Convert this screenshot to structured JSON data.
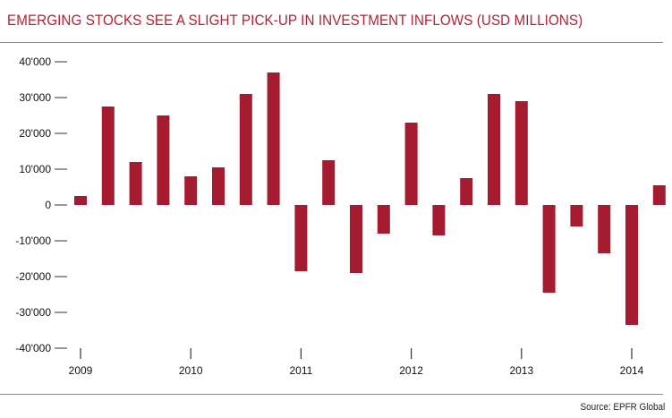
{
  "chart_data": {
    "type": "bar",
    "title": "EMERGING STOCKS SEE A SLIGHT PICK-UP IN INVESTMENT INFLOWS (USD MILLIONS)",
    "xlabel": "",
    "ylabel": "",
    "ylim": [
      -40000,
      40000
    ],
    "y_ticks": [
      40000,
      30000,
      20000,
      10000,
      0,
      -10000,
      -20000,
      -30000,
      -40000
    ],
    "y_tick_labels": [
      "40'000",
      "30'000",
      "20'000",
      "10'000",
      "0",
      "-10'000",
      "-20'000",
      "-30'000",
      "-40'000"
    ],
    "x_tick_labels": [
      "2009",
      "2010",
      "2011",
      "2012",
      "2013",
      "2014"
    ],
    "x_tick_positions": [
      0,
      4,
      8,
      12,
      16,
      20
    ],
    "categories": [
      "Q1 2009",
      "Q2 2009",
      "Q3 2009",
      "Q4 2009",
      "Q1 2010",
      "Q2 2010",
      "Q3 2010",
      "Q4 2010",
      "Q1 2011",
      "Q2 2011",
      "Q3 2011",
      "Q4 2011",
      "Q1 2012",
      "Q2 2012",
      "Q3 2012",
      "Q4 2012",
      "Q1 2013",
      "Q2 2013",
      "Q3 2013",
      "Q4 2013",
      "Q1 2014",
      "Q2 2014"
    ],
    "values": [
      2500,
      27500,
      12000,
      25000,
      8000,
      10500,
      31000,
      37000,
      -18500,
      12500,
      -19000,
      -8000,
      23000,
      -8500,
      7500,
      31000,
      29000,
      -24500,
      -6000,
      -13500,
      -33500,
      5500
    ],
    "bar_color": "#a51c30",
    "grid": false,
    "legend": "none"
  },
  "source": "Source: EPFR Global"
}
